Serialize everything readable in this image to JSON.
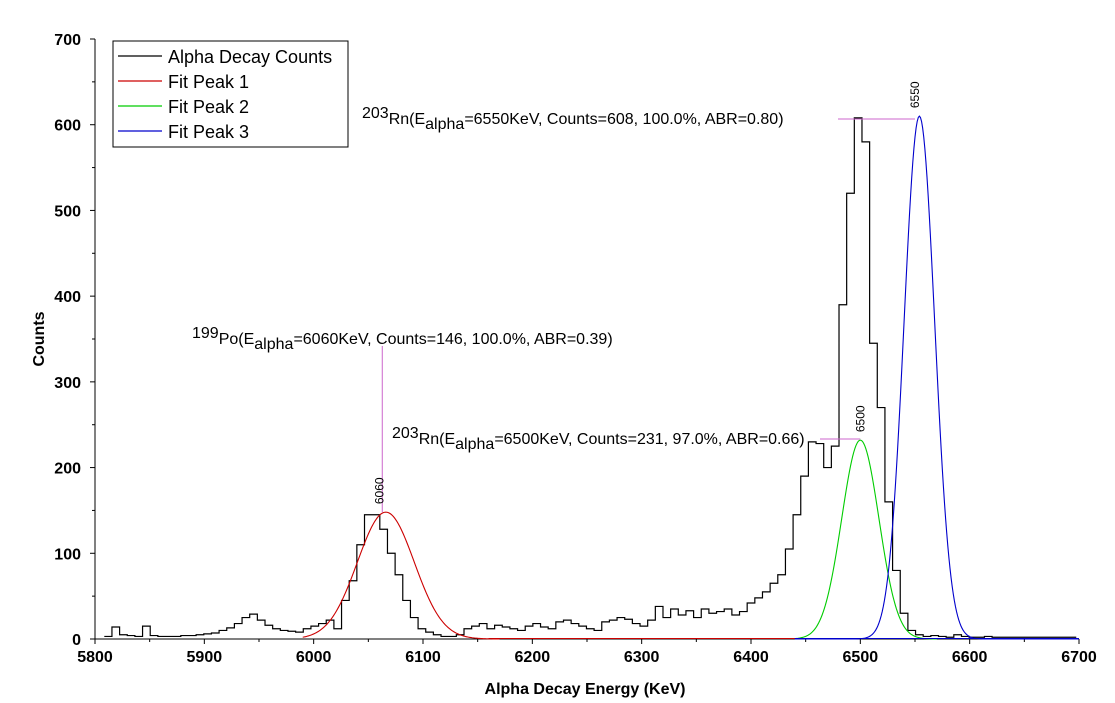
{
  "chart_data": {
    "type": "line",
    "xlabel": "Alpha Decay Energy (KeV)",
    "ylabel": "Counts",
    "xlim": [
      5800,
      6700
    ],
    "ylim": [
      0,
      700
    ],
    "xticks": [
      5800,
      5900,
      6000,
      6100,
      6200,
      6300,
      6400,
      6500,
      6600,
      6700
    ],
    "yticks": [
      0,
      100,
      200,
      300,
      400,
      500,
      600,
      700
    ],
    "legend_position": "top-left",
    "grid": false,
    "series": [
      {
        "name": "Alpha Decay Counts",
        "color": "#000000",
        "style": "step",
        "bin_width": 7,
        "x": [
          5812,
          5819,
          5826,
          5833,
          5840,
          5847,
          5854,
          5861,
          5868,
          5875,
          5882,
          5889,
          5896,
          5903,
          5910,
          5917,
          5924,
          5931,
          5938,
          5945,
          5952,
          5959,
          5966,
          5973,
          5980,
          5987,
          5994,
          6001,
          6008,
          6015,
          6022,
          6029,
          6036,
          6043,
          6050,
          6057,
          6064,
          6071,
          6078,
          6085,
          6092,
          6099,
          6106,
          6113,
          6120,
          6127,
          6134,
          6141,
          6148,
          6155,
          6162,
          6169,
          6176,
          6183,
          6190,
          6197,
          6204,
          6211,
          6218,
          6225,
          6232,
          6239,
          6246,
          6253,
          6260,
          6267,
          6274,
          6281,
          6288,
          6295,
          6302,
          6309,
          6316,
          6323,
          6330,
          6337,
          6344,
          6351,
          6358,
          6365,
          6372,
          6379,
          6386,
          6393,
          6400,
          6407,
          6414,
          6421,
          6428,
          6435,
          6442,
          6449,
          6456,
          6463,
          6470,
          6477,
          6484,
          6491,
          6498,
          6505,
          6512,
          6519,
          6526,
          6533,
          6540,
          6547,
          6554,
          6561,
          6568,
          6575,
          6582,
          6589,
          6596,
          6603,
          6610,
          6617,
          6624,
          6631,
          6638,
          6645,
          6652,
          6659,
          6666,
          6673,
          6680,
          6687,
          6694
        ],
        "values": [
          3,
          14,
          5,
          4,
          3,
          15,
          4,
          3,
          3,
          3,
          4,
          4,
          5,
          6,
          7,
          10,
          13,
          18,
          25,
          29,
          22,
          16,
          12,
          10,
          9,
          8,
          12,
          15,
          18,
          22,
          12,
          45,
          68,
          110,
          145,
          145,
          128,
          100,
          75,
          45,
          25,
          12,
          8,
          5,
          3,
          3,
          5,
          12,
          15,
          18,
          12,
          16,
          14,
          12,
          10,
          15,
          18,
          14,
          12,
          20,
          22,
          18,
          15,
          12,
          10,
          20,
          22,
          25,
          23,
          18,
          15,
          22,
          38,
          25,
          35,
          28,
          33,
          25,
          35,
          30,
          32,
          35,
          28,
          32,
          42,
          48,
          55,
          65,
          75,
          105,
          145,
          190,
          230,
          228,
          200,
          225,
          390,
          520,
          608,
          580,
          345,
          270,
          160,
          80,
          30,
          10,
          5,
          3,
          4,
          3,
          2,
          5,
          3,
          2,
          2,
          3,
          2,
          2,
          2,
          2,
          2,
          2,
          2,
          2,
          2,
          2,
          2
        ]
      },
      {
        "name": "Fit Peak 1",
        "color": "#cc0000",
        "style": "gaussian",
        "center": 6066,
        "amplitude": 148,
        "sigma": 26,
        "xrange": [
          5990,
          6170
        ]
      },
      {
        "name": "Fit Peak 2",
        "color": "#00cc00",
        "style": "gaussian",
        "center": 6500,
        "amplitude": 232,
        "sigma": 17,
        "xrange": [
          6440,
          6570
        ]
      },
      {
        "name": "Fit Peak 3",
        "color": "#0000cc",
        "style": "gaussian",
        "center": 6554,
        "amplitude": 610,
        "sigma": 14,
        "xrange": [
          6440,
          6700
        ]
      }
    ],
    "peaks": [
      {
        "x": 6060,
        "y": 148,
        "label": "6060"
      },
      {
        "x": 6500,
        "y": 232,
        "label": "6500"
      },
      {
        "x": 6550,
        "y": 610,
        "label": "6550"
      }
    ],
    "annotations": [
      {
        "iso": "199",
        "el": "Po(E",
        "sub": "alpha",
        "rest": "=6060KeV, Counts=146, 100.0%, ABR=0.39)"
      },
      {
        "iso": "203",
        "el": "Rn(E",
        "sub": "alpha",
        "rest": "=6500KeV, Counts=231, 97.0%, ABR=0.66)"
      },
      {
        "iso": "203",
        "el": "Rn(E",
        "sub": "alpha",
        "rest": "=6550KeV, Counts=608, 100.0%, ABR=0.80)"
      }
    ],
    "colors": {
      "axis": "#000000",
      "leader": "#cc66cc"
    }
  }
}
